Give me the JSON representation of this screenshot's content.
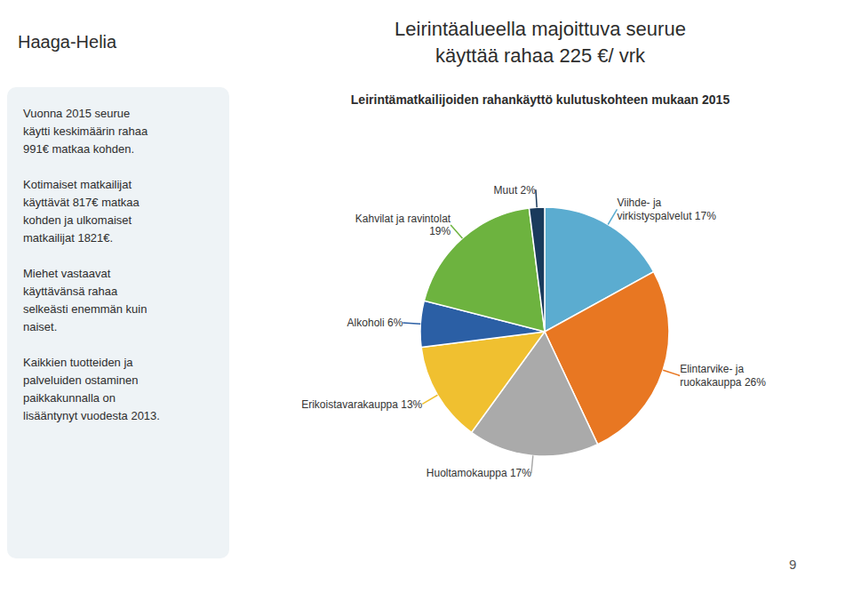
{
  "chart_data": {
    "type": "pie",
    "title": "Leirintäalueella majoittuva seurue\nkäyttää rahaa 225 €/ vrk",
    "subtitle": "Leirintämatkailijoiden rahankäyttö kulutuskohteen mukaan 2015",
    "categories": [
      "Viihde- ja\nvirkistyspalvelut 17%",
      "Elintarvike- ja\nruokakauppa 26%",
      "Huoltamokauppa 17%",
      "Erikoistavarakauppa 13%",
      "Alkoholi 6%",
      "Kahvilat ja ravintolat\n19%",
      "Muut 2%"
    ],
    "values": [
      17,
      26,
      17,
      13,
      6,
      19,
      2
    ],
    "colors": [
      "#5BACD0",
      "#E87722",
      "#AAAAAA",
      "#F0C030",
      "#2B5FA5",
      "#6DB33F",
      "#1A3A5C"
    ],
    "annotations": [
      "Haaga-Helia",
      "Vuonna 2015 seurue\nkäytti keskimäärin rahaa\n991€ matkaa kohden.\n\nKotimaiset matkailijat\nkäyttävät 817€ matkaa\nkohden ja ulkomaiset\nmatkailijat 1821€.\n\nMiehet vastaavat\nkäyttävänsä rahaa\nselkeästi enemmän kuin\nnaiset.\n\nKaikkien tuotteiden ja\npalveluiden ostaminen\npaikkakunnalla on\nlisääntynyt vuodesta 2013.",
      "9"
    ]
  }
}
